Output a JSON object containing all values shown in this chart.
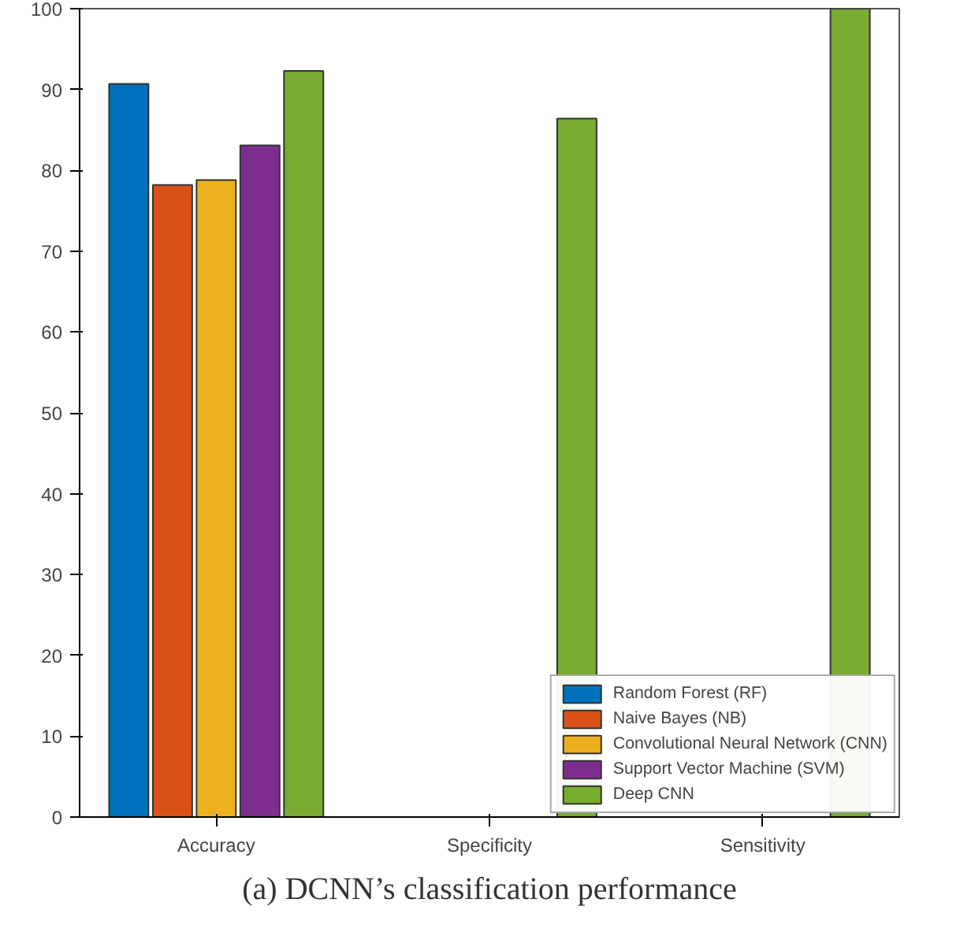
{
  "chart_data": {
    "type": "bar",
    "categories": [
      "Accuracy",
      "Specificity",
      "Sensitivity"
    ],
    "series": [
      {
        "name": "Random Forest (RF)",
        "color": "#0072bd",
        "values": [
          90.7,
          null,
          null
        ]
      },
      {
        "name": "Naive Bayes (NB)",
        "color": "#d95319",
        "values": [
          78.2,
          null,
          null
        ]
      },
      {
        "name": "Convolutional Neural Network (CNN)",
        "color": "#edb120",
        "values": [
          78.8,
          null,
          null
        ]
      },
      {
        "name": "Support Vector Machine (SVM)",
        "color": "#7e2f8e",
        "values": [
          83.1,
          null,
          null
        ]
      },
      {
        "name": "Deep CNN",
        "color": "#77ac30",
        "values": [
          92.3,
          86.4,
          100
        ]
      }
    ],
    "ylim": [
      0,
      100
    ],
    "yticks": [
      0,
      10,
      20,
      30,
      40,
      50,
      60,
      70,
      80,
      90,
      100
    ],
    "legend": "bottom right",
    "grid": false,
    "annotations": [
      "(a) DCNN’s classification performance"
    ]
  }
}
